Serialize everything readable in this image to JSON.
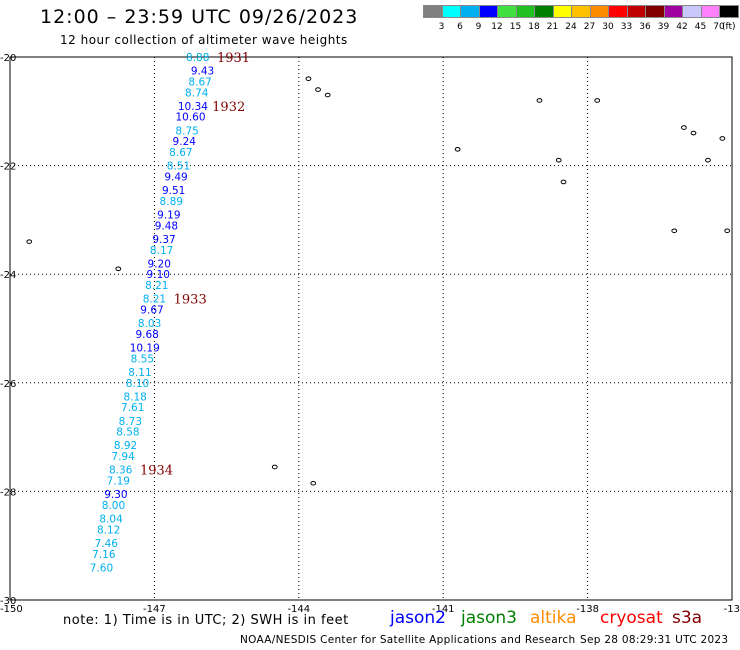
{
  "header": {
    "title": "12:00 – 23:59 UTC 09/26/2023",
    "subtitle": "12 hour collection of altimeter wave heights"
  },
  "colorbar": {
    "colors": [
      "#808080",
      "#00ffff",
      "#00b0f0",
      "#0000ff",
      "#40e040",
      "#20c020",
      "#008000",
      "#ffff00",
      "#ffc000",
      "#ff8c00",
      "#ff0000",
      "#c00000",
      "#800000",
      "#a000a0",
      "#c8c8ff",
      "#ff80ff",
      "#000000"
    ],
    "labels": [
      "3",
      "6",
      "9",
      "12",
      "15",
      "18",
      "21",
      "24",
      "27",
      "30",
      "33",
      "36",
      "39",
      "42",
      "45",
      "70"
    ],
    "unit": "(ft)"
  },
  "chart_data": {
    "type": "scatter",
    "xlim": [
      -150,
      -135
    ],
    "ylim": [
      -30,
      -20
    ],
    "x_ticks": [
      "-150",
      "-147",
      "-144",
      "-141",
      "-138",
      "-13"
    ],
    "y_ticks": [
      "-20",
      "-22",
      "-24",
      "-26",
      "-28",
      "-30"
    ],
    "grid": true,
    "series": [
      {
        "points": [
          {
            "lon": -146.1,
            "lat": -20.0,
            "label": "8.88",
            "color": "#00b0f0"
          },
          {
            "lon": -146.0,
            "lat": -20.25,
            "label": "9.43",
            "color": "#0000ff"
          },
          {
            "lon": -146.05,
            "lat": -20.45,
            "label": "8.67",
            "color": "#00b0f0"
          },
          {
            "lon": -146.12,
            "lat": -20.65,
            "label": "8.74",
            "color": "#00b0f0"
          },
          {
            "lon": -146.2,
            "lat": -20.9,
            "label": "10.34",
            "color": "#0000ff"
          },
          {
            "lon": -146.25,
            "lat": -21.1,
            "label": "10.60",
            "color": "#0000ff"
          },
          {
            "lon": -146.32,
            "lat": -21.35,
            "label": "8.75",
            "color": "#00b0f0"
          },
          {
            "lon": -146.38,
            "lat": -21.55,
            "label": "9.24",
            "color": "#0000ff"
          },
          {
            "lon": -146.45,
            "lat": -21.75,
            "label": "8.67",
            "color": "#00b0f0"
          },
          {
            "lon": -146.5,
            "lat": -22.0,
            "label": "8.51",
            "color": "#00b0f0"
          },
          {
            "lon": -146.55,
            "lat": -22.2,
            "label": "9.49",
            "color": "#0000ff"
          },
          {
            "lon": -146.6,
            "lat": -22.45,
            "label": "9.51",
            "color": "#0000ff"
          },
          {
            "lon": -146.65,
            "lat": -22.65,
            "label": "8.89",
            "color": "#00b0f0"
          },
          {
            "lon": -146.7,
            "lat": -22.9,
            "label": "9.19",
            "color": "#0000ff"
          },
          {
            "lon": -146.75,
            "lat": -23.1,
            "label": "9.48",
            "color": "#0000ff"
          },
          {
            "lon": -146.8,
            "lat": -23.35,
            "label": "9.37",
            "color": "#0000ff"
          },
          {
            "lon": -146.85,
            "lat": -23.55,
            "label": "8.17",
            "color": "#00b0f0"
          },
          {
            "lon": -146.9,
            "lat": -23.8,
            "label": "9.20",
            "color": "#0000ff"
          },
          {
            "lon": -146.92,
            "lat": -24.0,
            "label": "9.10",
            "color": "#0000ff"
          },
          {
            "lon": -146.95,
            "lat": -24.2,
            "label": "8.21",
            "color": "#00b0f0"
          },
          {
            "lon": -147.0,
            "lat": -24.45,
            "label": "8.21",
            "color": "#00b0f0"
          },
          {
            "lon": -147.05,
            "lat": -24.65,
            "label": "9.67",
            "color": "#0000ff"
          },
          {
            "lon": -147.1,
            "lat": -24.9,
            "label": "8.03",
            "color": "#00b0f0"
          },
          {
            "lon": -147.15,
            "lat": -25.1,
            "label": "9.68",
            "color": "#0000ff"
          },
          {
            "lon": -147.2,
            "lat": -25.35,
            "label": "10.19",
            "color": "#0000ff"
          },
          {
            "lon": -147.25,
            "lat": -25.55,
            "label": "8.55",
            "color": "#00b0f0"
          },
          {
            "lon": -147.3,
            "lat": -25.8,
            "label": "8.11",
            "color": "#00b0f0"
          },
          {
            "lon": -147.35,
            "lat": -26.0,
            "label": "8.10",
            "color": "#00b0f0"
          },
          {
            "lon": -147.4,
            "lat": -26.25,
            "label": "8.18",
            "color": "#00b0f0"
          },
          {
            "lon": -147.45,
            "lat": -26.45,
            "label": "7.61",
            "color": "#00b0f0"
          },
          {
            "lon": -147.5,
            "lat": -26.7,
            "label": "8.73",
            "color": "#00b0f0"
          },
          {
            "lon": -147.55,
            "lat": -26.9,
            "label": "8.58",
            "color": "#00b0f0"
          },
          {
            "lon": -147.6,
            "lat": -27.15,
            "label": "8.92",
            "color": "#00b0f0"
          },
          {
            "lon": -147.65,
            "lat": -27.35,
            "label": "7.94",
            "color": "#00b0f0"
          },
          {
            "lon": -147.7,
            "lat": -27.6,
            "label": "8.36",
            "color": "#00b0f0"
          },
          {
            "lon": -147.75,
            "lat": -27.8,
            "label": "7.19",
            "color": "#00b0f0"
          },
          {
            "lon": -147.8,
            "lat": -28.05,
            "label": "9.30",
            "color": "#0000ff"
          },
          {
            "lon": -147.85,
            "lat": -28.25,
            "label": "8.00",
            "color": "#00b0f0"
          },
          {
            "lon": -147.9,
            "lat": -28.5,
            "label": "8.04",
            "color": "#00b0f0"
          },
          {
            "lon": -147.95,
            "lat": -28.7,
            "label": "8.12",
            "color": "#00b0f0"
          },
          {
            "lon": -148.0,
            "lat": -28.95,
            "label": "7.46",
            "color": "#00b0f0"
          },
          {
            "lon": -148.05,
            "lat": -29.15,
            "label": "7.16",
            "color": "#00b0f0"
          },
          {
            "lon": -148.1,
            "lat": -29.4,
            "label": "7.60",
            "color": "#00b0f0"
          }
        ]
      }
    ],
    "time_labels": [
      {
        "lon": -145.7,
        "lat": -20.0,
        "label": "1931",
        "color": "#800000"
      },
      {
        "lon": -145.8,
        "lat": -20.9,
        "label": "1932",
        "color": "#800000"
      },
      {
        "lon": -146.6,
        "lat": -24.45,
        "label": "1933",
        "color": "#800000"
      },
      {
        "lon": -147.3,
        "lat": -27.6,
        "label": "1934",
        "color": "#800000"
      }
    ],
    "islands": [
      {
        "lon": -149.6,
        "lat": -23.4
      },
      {
        "lon": -147.75,
        "lat": -23.9
      },
      {
        "lon": -143.8,
        "lat": -20.4
      },
      {
        "lon": -143.6,
        "lat": -20.6
      },
      {
        "lon": -143.4,
        "lat": -20.7
      },
      {
        "lon": -140.7,
        "lat": -21.7
      },
      {
        "lon": -138.6,
        "lat": -21.9
      },
      {
        "lon": -138.5,
        "lat": -22.3
      },
      {
        "lon": -139.0,
        "lat": -20.8
      },
      {
        "lon": -137.8,
        "lat": -20.8
      },
      {
        "lon": -136.0,
        "lat": -21.3
      },
      {
        "lon": -135.8,
        "lat": -21.4
      },
      {
        "lon": -135.5,
        "lat": -21.9
      },
      {
        "lon": -135.2,
        "lat": -21.5
      },
      {
        "lon": -136.2,
        "lat": -23.2
      },
      {
        "lon": -135.1,
        "lat": -23.2
      },
      {
        "lon": -144.5,
        "lat": -27.55
      },
      {
        "lon": -143.7,
        "lat": -27.85
      }
    ]
  },
  "note": "note:  1) Time is in UTC;  2) SWH is in feet",
  "satellites": [
    {
      "name": "jason2",
      "color": "#0000ff"
    },
    {
      "name": "jason3",
      "color": "#008000"
    },
    {
      "name": "altika",
      "color": "#ff8c00"
    },
    {
      "name": "cryosat",
      "color": "#ff0000"
    },
    {
      "name": "s3a",
      "color": "#800000"
    }
  ],
  "footer": {
    "agency": "NOAA/NESDIS Center for Satellite Applications and Research",
    "timestamp": "Sep 28 08:29:31 UTC 2023"
  }
}
